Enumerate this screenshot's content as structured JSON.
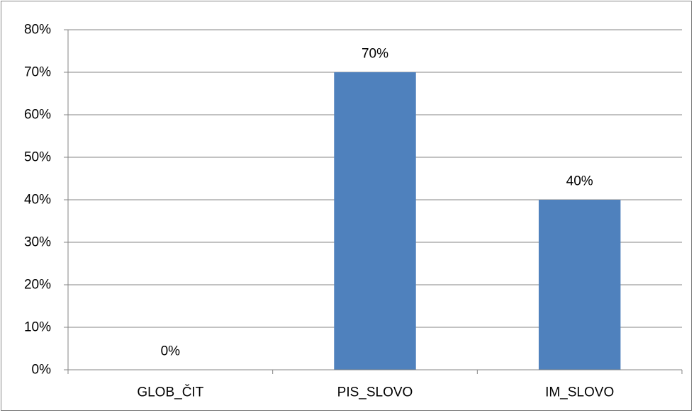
{
  "chart_data": {
    "type": "bar",
    "title": "",
    "xlabel": "",
    "ylabel": "",
    "categories": [
      "GLOB_ČIT",
      "PIS_SLOVO",
      "IM_SLOVO"
    ],
    "values": [
      0,
      70,
      40
    ],
    "data_labels": [
      "0%",
      "70%",
      "40%"
    ],
    "ylim": [
      0,
      80
    ],
    "y_ticks": [
      "0%",
      "10%",
      "20%",
      "30%",
      "40%",
      "50%",
      "60%",
      "70%",
      "80%"
    ],
    "grid": true,
    "legend": "none",
    "bar_color": "#4F81BD",
    "gridline_color": "#868686"
  }
}
